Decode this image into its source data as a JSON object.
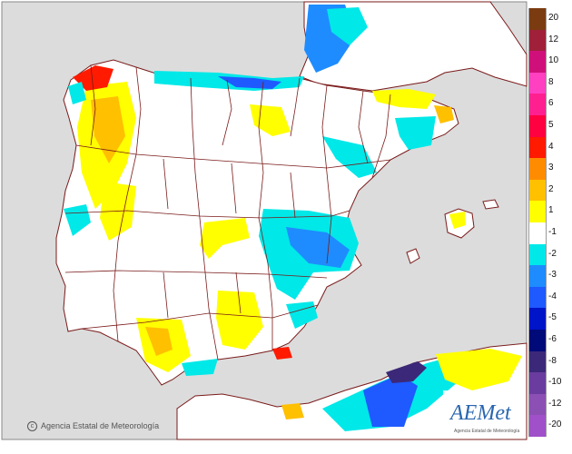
{
  "credit": "Agencia Estatal de Meteorología",
  "logo": {
    "text": "AEMet",
    "subtitle": "Agencia Estatal de Meteorología"
  },
  "colors": {
    "sea": "#dcdcdc",
    "land": "#ffffff",
    "borders": "#7a1a1a"
  },
  "legend": {
    "positive": [
      {
        "label": "20",
        "color": "#7a3b10"
      },
      {
        "label": "12",
        "color": "#a0203a"
      },
      {
        "label": "10",
        "color": "#d0107a"
      },
      {
        "label": "8",
        "color": "#ff40c0"
      },
      {
        "label": "6",
        "color": "#ff2090"
      },
      {
        "label": "5",
        "color": "#ff0040"
      },
      {
        "label": "4",
        "color": "#ff1a00"
      },
      {
        "label": "3",
        "color": "#ff8c00"
      },
      {
        "label": "2",
        "color": "#ffc000"
      },
      {
        "label": "1",
        "color": "#ffff00"
      }
    ],
    "neutral": {
      "label": "-1",
      "color": "#ffffff"
    },
    "negative": [
      {
        "label": "-2",
        "color": "#00e8e8"
      },
      {
        "label": "-3",
        "color": "#1e8cff"
      },
      {
        "label": "-4",
        "color": "#1e5aff"
      },
      {
        "label": "-5",
        "color": "#0014c8"
      },
      {
        "label": "-6",
        "color": "#000a78"
      },
      {
        "label": "-8",
        "color": "#3c2878"
      },
      {
        "label": "-10",
        "color": "#6a3ca0"
      },
      {
        "label": "-12",
        "color": "#8c50b4"
      },
      {
        "label": "-20",
        "color": "#a050c8"
      }
    ]
  }
}
